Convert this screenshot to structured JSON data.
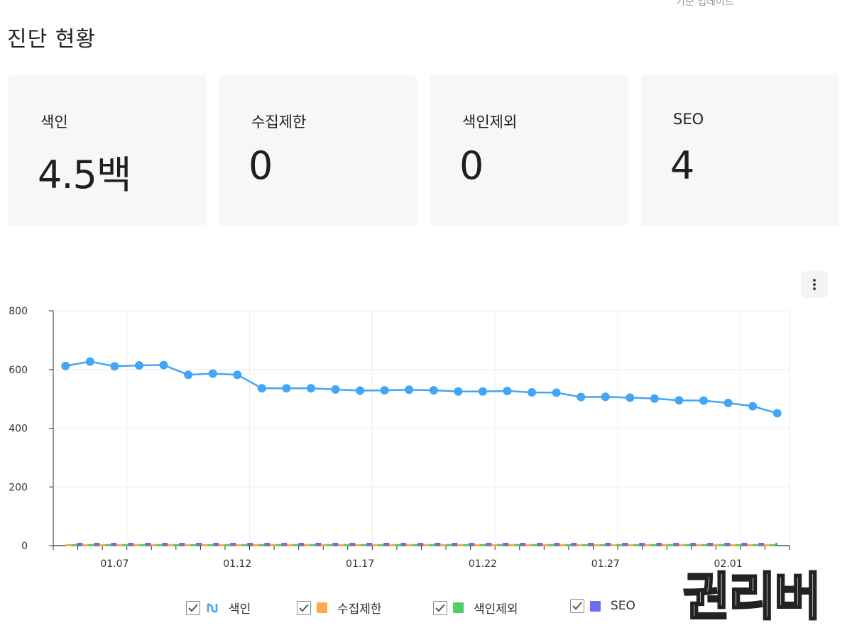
{
  "header": {
    "cut_text": "기준 업데이트",
    "title": "진단 현황"
  },
  "cards": [
    {
      "label": "색인",
      "value": "4.5백"
    },
    {
      "label": "수집제한",
      "value": "0"
    },
    {
      "label": "색인제외",
      "value": "0"
    },
    {
      "label": "SEO",
      "value": "4"
    }
  ],
  "colors": {
    "index": "#42a5f5",
    "crawl_limit": "#ffa94d",
    "index_excluded": "#51cf66",
    "seo": "#6e6cf0",
    "card_bg": "#f6f7f8"
  },
  "chart_data": {
    "type": "line",
    "x": [
      "01.05",
      "01.06",
      "01.07",
      "01.08",
      "01.09",
      "01.10",
      "01.11",
      "01.12",
      "01.13",
      "01.14",
      "01.15",
      "01.16",
      "01.17",
      "01.18",
      "01.19",
      "01.20",
      "01.21",
      "01.22",
      "01.23",
      "01.24",
      "01.25",
      "01.26",
      "01.27",
      "01.28",
      "01.29",
      "01.30",
      "01.31",
      "02.01",
      "02.02",
      "02.03"
    ],
    "x_tick_labels": [
      "01.07",
      "01.12",
      "01.17",
      "01.22",
      "01.27",
      "02.01"
    ],
    "ylim": [
      0,
      800
    ],
    "y_ticks": [
      0,
      200,
      400,
      600,
      800
    ],
    "grid": true,
    "series": [
      {
        "name": "색인",
        "values": [
          612,
          627,
          611,
          614,
          615,
          582,
          586,
          582,
          536,
          536,
          536,
          532,
          528,
          529,
          531,
          529,
          525,
          525,
          527,
          522,
          521,
          506,
          507,
          504,
          501,
          495,
          494,
          486,
          475,
          451
        ]
      },
      {
        "name": "수집제한",
        "values": [
          0,
          0,
          0,
          0,
          0,
          0,
          0,
          0,
          0,
          0,
          0,
          0,
          0,
          0,
          0,
          0,
          0,
          0,
          0,
          0,
          0,
          0,
          0,
          0,
          0,
          0,
          0,
          0,
          0,
          0
        ]
      },
      {
        "name": "색인제외",
        "values": [
          0,
          0,
          0,
          0,
          0,
          0,
          0,
          0,
          0,
          0,
          0,
          0,
          0,
          0,
          0,
          0,
          0,
          0,
          0,
          0,
          0,
          0,
          0,
          0,
          0,
          0,
          0,
          0,
          0,
          0
        ]
      },
      {
        "name": "SEO",
        "values": [
          4,
          4,
          4,
          4,
          4,
          4,
          4,
          4,
          4,
          4,
          4,
          4,
          4,
          4,
          4,
          4,
          4,
          4,
          4,
          4,
          4,
          4,
          4,
          4,
          4,
          4,
          4,
          4,
          4,
          4
        ]
      }
    ],
    "legend_position": "bottom"
  },
  "legend": [
    {
      "label": "색인",
      "icon": "line-icon"
    },
    {
      "label": "수집제한",
      "icon": "square-icon"
    },
    {
      "label": "색인제외",
      "icon": "square-icon"
    },
    {
      "label": "SEO",
      "icon": "square-icon"
    }
  ],
  "watermark": "권리버"
}
